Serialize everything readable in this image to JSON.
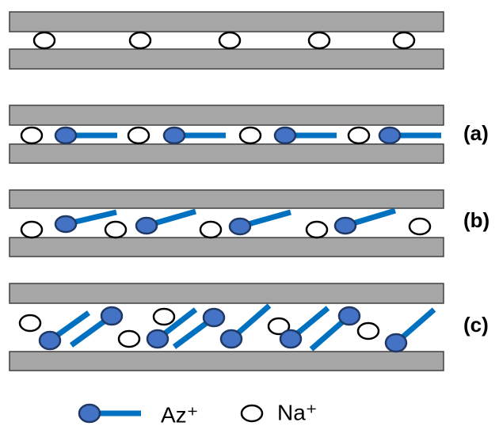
{
  "diagram": {
    "labels": [
      "(a)",
      "(b)",
      "(c)"
    ],
    "legend": {
      "az": "Az⁺",
      "na": "Na⁺"
    }
  }
}
